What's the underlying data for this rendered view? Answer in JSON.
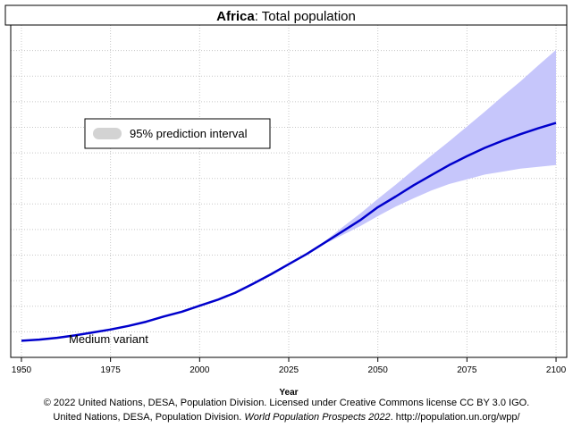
{
  "chart_data": {
    "type": "line",
    "title_bold": "Africa",
    "title_rest": ": Total population",
    "xlabel": "Year",
    "ylabel": "",
    "xlim": [
      1947,
      2103
    ],
    "x_ticks": [
      1950,
      1975,
      2000,
      2025,
      2050,
      2075,
      2100
    ],
    "x_tick_labels": [
      "1950",
      "1975",
      "2000",
      "2025",
      "2050",
      "2075",
      "2100"
    ],
    "grid": true,
    "legend": {
      "placement": "upper-left",
      "label": "95% prediction interval"
    },
    "series_label": "Medium variant",
    "median": {
      "x": [
        1950,
        1955,
        1960,
        1965,
        1970,
        1975,
        1980,
        1985,
        1990,
        1995,
        2000,
        2005,
        2010,
        2015,
        2020,
        2025,
        2030,
        2035,
        2040,
        2045,
        2050,
        2055,
        2060,
        2065,
        2070,
        2075,
        2080,
        2085,
        2090,
        2095,
        2100
      ],
      "y": [
        0.23,
        0.25,
        0.28,
        0.32,
        0.37,
        0.42,
        0.48,
        0.55,
        0.64,
        0.72,
        0.82,
        0.92,
        1.04,
        1.19,
        1.35,
        1.52,
        1.69,
        1.88,
        2.07,
        2.26,
        2.48,
        2.66,
        2.85,
        3.02,
        3.19,
        3.34,
        3.48,
        3.6,
        3.71,
        3.81,
        3.9
      ]
    },
    "prediction_interval_95": {
      "x": [
        2035,
        2040,
        2045,
        2050,
        2055,
        2060,
        2065,
        2070,
        2075,
        2080,
        2085,
        2090,
        2095,
        2100
      ],
      "upper": [
        1.9,
        2.14,
        2.37,
        2.62,
        2.86,
        3.11,
        3.35,
        3.59,
        3.84,
        4.09,
        4.35,
        4.6,
        4.87,
        5.13
      ],
      "lower": [
        1.86,
        2.01,
        2.16,
        2.33,
        2.49,
        2.63,
        2.76,
        2.87,
        2.95,
        3.03,
        3.08,
        3.13,
        3.16,
        3.19
      ]
    },
    "ylim": [
      -0.05,
      5.55
    ],
    "colors": {
      "median_line": "#0000cc",
      "interval_fill": "#c6c6fb",
      "legend_swatch": "#d3d3d3",
      "grid": "#c8c8c8",
      "frame": "#000000"
    }
  },
  "footer": {
    "line1": "© 2022 United Nations, DESA, Population Division. Licensed under Creative Commons license CC BY 3.0 IGO.",
    "line2_prefix": "United Nations, DESA, Population Division. ",
    "line2_italic": "World Population Prospects 2022",
    "line2_suffix": ". http://population.un.org/wpp/"
  }
}
